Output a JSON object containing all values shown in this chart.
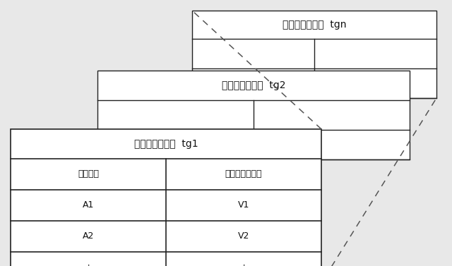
{
  "fig_bg": "#e8e8e8",
  "table_bg": "#ffffff",
  "border_color": "#222222",
  "text_color": "#111111",
  "dashed_color": "#555555",
  "tables": [
    {
      "label": "青信号開始時刻  tgn",
      "style": "back"
    },
    {
      "label": "青信号開始時刻  tg2",
      "style": "middle"
    },
    {
      "label": "青信号開始時刻  tg1",
      "style": "front"
    }
  ],
  "front_table": {
    "col1_header": "停止位置",
    "col2_header": "発進交通流速度",
    "rows": [
      [
        "A1",
        "V1"
      ],
      [
        "A2",
        "V2"
      ],
      [
        "∶",
        "∶"
      ]
    ]
  },
  "font_size_title": 10,
  "font_size_header": 9,
  "font_size_cell": 9
}
